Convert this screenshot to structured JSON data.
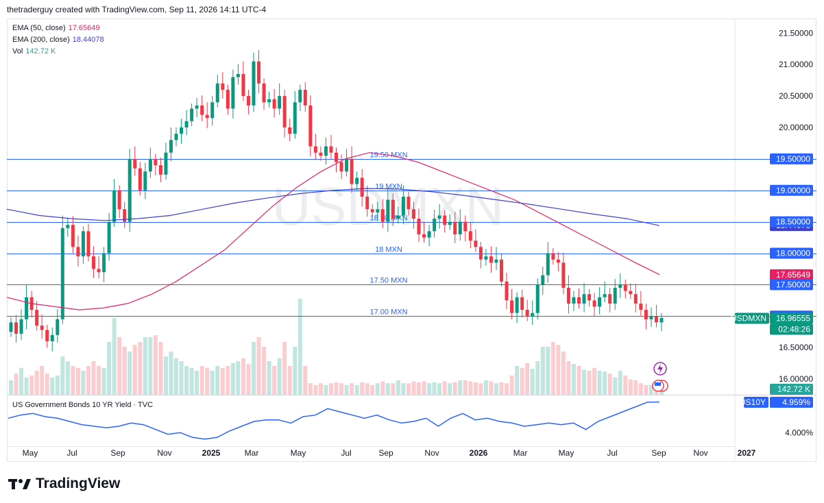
{
  "header": {
    "credit": "thetraderguy created with TradingView.com, Sep 11, 2026 14:11 UTC-4"
  },
  "legend": {
    "ema50_label": "EMA (50, close)",
    "ema50_value": "17.65649",
    "ema50_color": "#e91e63",
    "ema200_label": "EMA (200, close)",
    "ema200_value": "18.44078",
    "ema200_color": "#3f3fcf",
    "vol_label": "Vol",
    "vol_value": "142.72 K",
    "vol_color": "#26a69a"
  },
  "symbol_watermark": "USDMXN",
  "lower_pane": {
    "title": "US Government Bonds 10 YR Yield · TVC",
    "symbol": "US10Y",
    "last": "4.959%",
    "axis_tick": "4.000%"
  },
  "price_labels": {
    "symbol": "USDMXN",
    "last": "16.96555",
    "countdown": "02:48:26",
    "volume": "142.72 K",
    "ema50": "17.65649",
    "ema200": "18.44078"
  },
  "footer": {
    "brand": "TradingView"
  },
  "chart_data": {
    "type": "candlestick",
    "symbol": "USDMXN",
    "y_axis": {
      "min": 15.75,
      "max": 21.7,
      "ticks": [
        "16.00000",
        "16.50000",
        "17.00000",
        "17.50000",
        "18.00000",
        "18.50000",
        "19.00000",
        "19.50000",
        "20.00000",
        "20.50000",
        "21.00000",
        "21.50000"
      ]
    },
    "x_axis": {
      "ticks": [
        "May",
        "Jul",
        "Sep",
        "Nov",
        "2025",
        "Mar",
        "May",
        "Jul",
        "Sep",
        "Nov",
        "2026",
        "Mar",
        "May",
        "Jul",
        "Sep",
        "Nov",
        "2027"
      ]
    },
    "horizontal_lines": [
      {
        "label": "19.50 MXN",
        "value": 19.5
      },
      {
        "label": "19 MXN",
        "value": 19.0
      },
      {
        "label": "18.50 MXN",
        "value": 18.5
      },
      {
        "label": "18 MXN",
        "value": 18.0
      },
      {
        "label": "17.50 MXN",
        "value": 17.5
      },
      {
        "label": "17.00 MXN",
        "value": 17.0
      }
    ],
    "closes": [
      16.9,
      16.72,
      16.95,
      17.3,
      17.1,
      16.85,
      16.78,
      16.6,
      16.7,
      16.95,
      18.4,
      18.45,
      18.1,
      17.95,
      18.35,
      17.95,
      17.75,
      17.7,
      18.0,
      18.5,
      19.0,
      18.7,
      18.5,
      19.5,
      19.35,
      19.0,
      19.3,
      19.5,
      19.4,
      19.25,
      19.6,
      19.8,
      19.9,
      20.0,
      20.1,
      20.3,
      20.35,
      20.2,
      20.15,
      20.4,
      20.7,
      20.6,
      20.3,
      20.8,
      20.85,
      20.5,
      20.35,
      21.05,
      20.7,
      20.4,
      20.45,
      20.3,
      20.5,
      20.0,
      19.9,
      20.4,
      20.6,
      20.35,
      19.7,
      19.6,
      19.55,
      19.7,
      19.6,
      19.45,
      19.3,
      19.5,
      19.1,
      19.2,
      18.9,
      18.7,
      18.65,
      18.7,
      18.5,
      18.85,
      18.55,
      18.6,
      18.9,
      18.7,
      18.55,
      18.3,
      18.25,
      18.35,
      18.55,
      18.6,
      18.45,
      18.5,
      18.3,
      18.5,
      18.35,
      18.2,
      18.1,
      17.9,
      17.95,
      17.85,
      17.9,
      17.55,
      17.25,
      17.05,
      17.3,
      17.1,
      17.0,
      17.05,
      17.5,
      17.65,
      18.0,
      17.9,
      17.85,
      17.45,
      17.2,
      17.3,
      17.2,
      17.35,
      17.25,
      17.15,
      17.3,
      17.35,
      17.2,
      17.45,
      17.5,
      17.4,
      17.35,
      17.2,
      17.1,
      16.95,
      17.0,
      16.9,
      16.97
    ],
    "ema50": [
      17.3,
      17.2,
      17.15,
      17.1,
      17.13,
      17.2,
      17.35,
      17.55,
      17.8,
      18.05,
      18.4,
      18.75,
      19.05,
      19.3,
      19.5,
      19.6,
      19.55,
      19.45,
      19.3,
      19.15,
      19.0,
      18.85,
      18.65,
      18.45,
      18.25,
      18.05,
      17.85,
      17.66
    ],
    "ema200": [
      18.7,
      18.6,
      18.55,
      18.52,
      18.55,
      18.6,
      18.7,
      18.8,
      18.88,
      18.95,
      19.0,
      19.03,
      19.02,
      18.98,
      18.92,
      18.85,
      18.78,
      18.7,
      18.62,
      18.55,
      18.44
    ],
    "volume": [
      0.15,
      0.22,
      0.28,
      0.18,
      0.2,
      0.25,
      0.3,
      0.22,
      0.18,
      0.2,
      0.4,
      0.35,
      0.3,
      0.28,
      0.25,
      0.3,
      0.35,
      0.3,
      0.28,
      0.55,
      0.8,
      0.6,
      0.5,
      0.45,
      0.52,
      0.55,
      0.6,
      0.6,
      0.62,
      0.55,
      0.4,
      0.45,
      0.38,
      0.35,
      0.3,
      0.28,
      0.25,
      0.3,
      0.28,
      0.25,
      0.3,
      0.28,
      0.3,
      0.33,
      0.35,
      0.38,
      0.32,
      0.55,
      0.6,
      0.5,
      0.35,
      0.3,
      0.38,
      0.55,
      0.3,
      0.5,
      1.0,
      0.3,
      0.12,
      0.1,
      0.12,
      0.1,
      0.12,
      0.13,
      0.12,
      0.1,
      0.12,
      0.1,
      0.13,
      0.12,
      0.1,
      0.12,
      0.14,
      0.12,
      0.12,
      0.15,
      0.12,
      0.12,
      0.14,
      0.13,
      0.14,
      0.12,
      0.13,
      0.12,
      0.14,
      0.12,
      0.13,
      0.15,
      0.15,
      0.14,
      0.13,
      0.12,
      0.15,
      0.14,
      0.12,
      0.13,
      0.12,
      0.2,
      0.3,
      0.28,
      0.33,
      0.27,
      0.35,
      0.5,
      0.5,
      0.55,
      0.52,
      0.45,
      0.35,
      0.32,
      0.3,
      0.26,
      0.25,
      0.28,
      0.25,
      0.24,
      0.22,
      0.18,
      0.25,
      0.2,
      0.16,
      0.15,
      0.12,
      0.1,
      0.1,
      0.09,
      0.08
    ],
    "yield10y": [
      4.45,
      4.55,
      4.6,
      4.5,
      4.45,
      4.35,
      4.25,
      4.2,
      4.15,
      4.2,
      4.3,
      4.25,
      4.1,
      3.95,
      4.0,
      3.85,
      3.8,
      3.85,
      4.05,
      4.2,
      4.35,
      4.4,
      4.4,
      4.3,
      4.5,
      4.55,
      4.75,
      4.65,
      4.55,
      4.45,
      4.55,
      4.4,
      4.3,
      4.35,
      4.45,
      4.2,
      4.45,
      4.6,
      4.4,
      4.45,
      4.35,
      4.3,
      4.2,
      4.25,
      4.3,
      4.25,
      4.3,
      4.1,
      4.35,
      4.5,
      4.65,
      4.8,
      4.95,
      4.959
    ],
    "yield_axis": {
      "min": 3.6,
      "max": 5.1
    }
  }
}
